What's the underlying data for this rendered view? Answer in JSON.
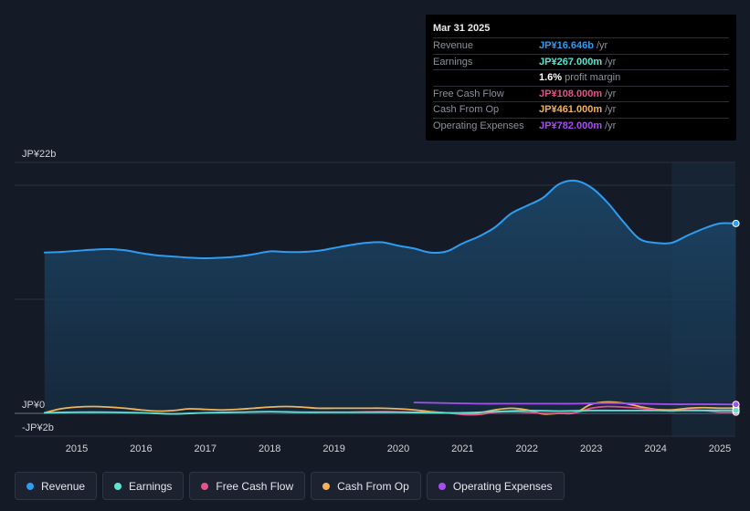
{
  "tooltip": {
    "date": "Mar 31 2025",
    "rows": [
      {
        "label": "Revenue",
        "value": "JP¥16.646b",
        "unit": "/yr",
        "color": "#2e9cf0"
      },
      {
        "label": "Earnings",
        "value": "JP¥267.000m",
        "unit": "/yr",
        "color": "#5ee3d1"
      },
      {
        "label": "",
        "value": "1.6%",
        "unit": "profit margin",
        "color": "#ffffff"
      },
      {
        "label": "Free Cash Flow",
        "value": "JP¥108.000m",
        "unit": "/yr",
        "color": "#e0558a"
      },
      {
        "label": "Cash From Op",
        "value": "JP¥461.000m",
        "unit": "/yr",
        "color": "#f0b35a"
      },
      {
        "label": "Operating Expenses",
        "value": "JP¥782.000m",
        "unit": "/yr",
        "color": "#a64ff0"
      }
    ]
  },
  "legend": [
    {
      "label": "Revenue",
      "color": "#2e9cf0"
    },
    {
      "label": "Earnings",
      "color": "#5ee3d1"
    },
    {
      "label": "Free Cash Flow",
      "color": "#e0558a"
    },
    {
      "label": "Cash From Op",
      "color": "#f0b35a"
    },
    {
      "label": "Operating Expenses",
      "color": "#a64ff0"
    }
  ],
  "chart_data": {
    "type": "area",
    "title": "",
    "xlabel": "",
    "ylabel": "",
    "y_tick_labels": [
      "JP¥22b",
      "JP¥0",
      "-JP¥2b"
    ],
    "y_ticks": [
      22,
      0,
      -2
    ],
    "ylim": [
      -2,
      22
    ],
    "xlim": [
      2014.45,
      2025.25
    ],
    "x_tick_labels": [
      "2015",
      "2016",
      "2017",
      "2018",
      "2019",
      "2020",
      "2021",
      "2022",
      "2023",
      "2024",
      "2025"
    ],
    "x_ticks": [
      2015,
      2016,
      2017,
      2018,
      2019,
      2020,
      2021,
      2022,
      2023,
      2024,
      2025
    ],
    "forecast_shade_start": 2024.25,
    "grid": true,
    "legend_position": "bottom",
    "series": [
      {
        "name": "Revenue",
        "color": "#2e9cf0",
        "fill": true,
        "x": [
          2014.5,
          2014.75,
          2015.0,
          2015.25,
          2015.5,
          2015.75,
          2016.0,
          2016.25,
          2016.5,
          2016.75,
          2017.0,
          2017.25,
          2017.5,
          2017.75,
          2018.0,
          2018.25,
          2018.5,
          2018.75,
          2019.0,
          2019.25,
          2019.5,
          2019.75,
          2020.0,
          2020.25,
          2020.5,
          2020.75,
          2021.0,
          2021.25,
          2021.5,
          2021.75,
          2022.0,
          2022.25,
          2022.5,
          2022.75,
          2023.0,
          2023.25,
          2023.5,
          2023.75,
          2024.0,
          2024.25,
          2024.5,
          2024.75,
          2025.0,
          2025.25
        ],
        "y": [
          14.1,
          14.15,
          14.25,
          14.35,
          14.4,
          14.3,
          14.05,
          13.85,
          13.75,
          13.65,
          13.6,
          13.65,
          13.75,
          13.95,
          14.2,
          14.15,
          14.15,
          14.25,
          14.5,
          14.75,
          14.95,
          15.0,
          14.7,
          14.45,
          14.1,
          14.2,
          14.9,
          15.5,
          16.3,
          17.5,
          18.2,
          18.9,
          20.1,
          20.4,
          19.8,
          18.5,
          16.8,
          15.3,
          14.95,
          14.95,
          15.6,
          16.2,
          16.646,
          16.646
        ]
      },
      {
        "name": "Earnings",
        "color": "#5ee3d1",
        "fill": false,
        "x": [
          2014.5,
          2015.0,
          2015.5,
          2016.0,
          2016.5,
          2017.0,
          2017.5,
          2018.0,
          2018.5,
          2019.0,
          2019.5,
          2020.0,
          2020.5,
          2021.0,
          2021.5,
          2022.0,
          2022.5,
          2023.0,
          2023.5,
          2024.0,
          2024.5,
          2025.0,
          2025.25
        ],
        "y": [
          0.05,
          0.1,
          0.1,
          0.05,
          -0.05,
          0.05,
          0.1,
          0.15,
          0.1,
          0.1,
          0.1,
          0.1,
          0.05,
          0.05,
          0.15,
          0.25,
          0.2,
          0.25,
          0.25,
          0.25,
          0.25,
          0.267,
          0.267
        ]
      },
      {
        "name": "Free Cash Flow",
        "color": "#e0558a",
        "fill": false,
        "x": [
          2019.25,
          2019.75,
          2020.25,
          2020.75,
          2021.0,
          2021.25,
          2021.5,
          2021.75,
          2022.0,
          2022.25,
          2022.5,
          2022.75,
          2023.0,
          2023.25,
          2023.5,
          2023.75,
          2024.0,
          2024.25,
          2024.5,
          2024.75,
          2025.0,
          2025.25
        ],
        "y": [
          0.1,
          0.15,
          0.1,
          0.05,
          -0.1,
          -0.1,
          0.1,
          0.15,
          0.1,
          0.0,
          0.0,
          0.05,
          0.45,
          0.6,
          0.55,
          0.45,
          0.3,
          0.2,
          0.3,
          0.25,
          0.108,
          0.108
        ]
      },
      {
        "name": "Cash From Op",
        "color": "#f0b35a",
        "fill": false,
        "x": [
          2014.5,
          2014.75,
          2015.0,
          2015.25,
          2015.5,
          2015.75,
          2016.0,
          2016.25,
          2016.5,
          2016.75,
          2017.0,
          2017.25,
          2017.5,
          2017.75,
          2018.0,
          2018.25,
          2018.5,
          2018.75,
          2019.0,
          2019.25,
          2019.5,
          2019.75,
          2020.0,
          2020.25,
          2020.5,
          2020.75,
          2021.0,
          2021.25,
          2021.5,
          2021.75,
          2022.0,
          2022.25,
          2022.5,
          2022.75,
          2023.0,
          2023.25,
          2023.5,
          2023.75,
          2024.0,
          2024.25,
          2024.5,
          2024.75,
          2025.0,
          2025.25
        ],
        "y": [
          0.05,
          0.4,
          0.55,
          0.6,
          0.55,
          0.45,
          0.3,
          0.2,
          0.25,
          0.4,
          0.35,
          0.3,
          0.35,
          0.45,
          0.55,
          0.6,
          0.55,
          0.45,
          0.45,
          0.45,
          0.45,
          0.45,
          0.4,
          0.3,
          0.15,
          0.05,
          -0.05,
          0.05,
          0.3,
          0.45,
          0.3,
          -0.05,
          0.0,
          0.05,
          0.8,
          1.0,
          0.9,
          0.6,
          0.35,
          0.3,
          0.45,
          0.5,
          0.461,
          0.461
        ]
      },
      {
        "name": "Operating Expenses",
        "color": "#a64ff0",
        "fill": false,
        "x": [
          2020.25,
          2020.75,
          2021.25,
          2021.75,
          2022.25,
          2022.75,
          2023.25,
          2023.75,
          2024.25,
          2024.75,
          2025.25
        ],
        "y": [
          0.95,
          0.9,
          0.85,
          0.85,
          0.85,
          0.85,
          0.9,
          0.85,
          0.8,
          0.8,
          0.782
        ]
      }
    ]
  }
}
